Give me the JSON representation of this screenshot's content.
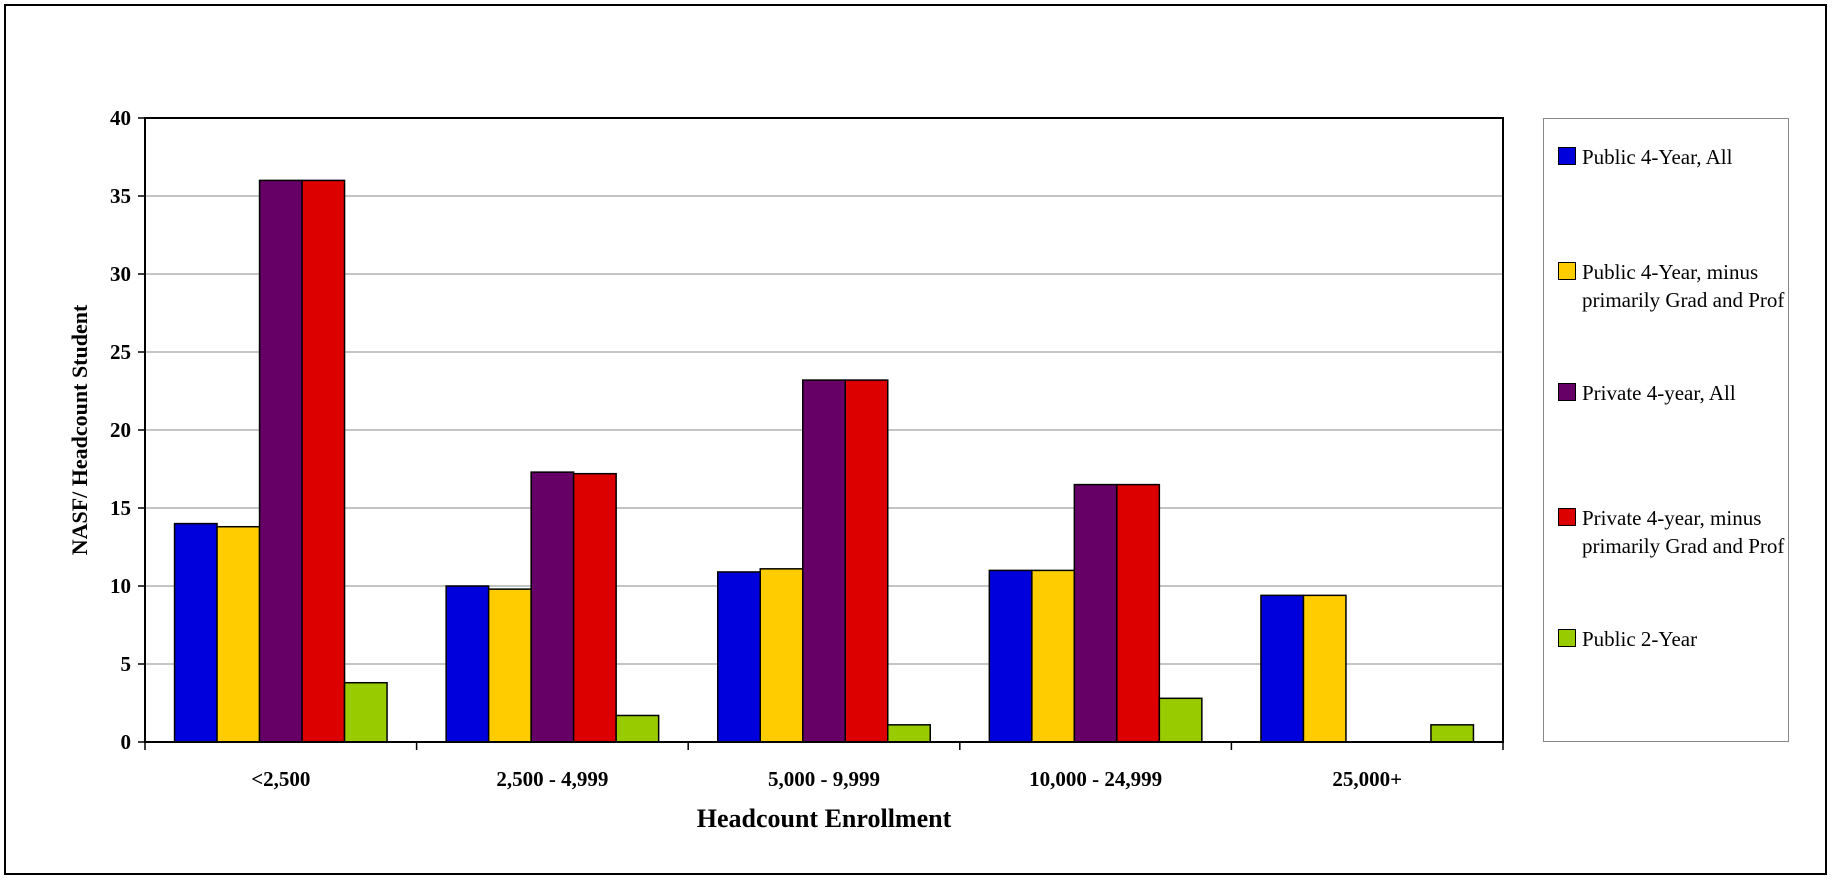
{
  "chart_data": {
    "type": "bar",
    "categories": [
      "<2,500",
      "2,500 - 4,999",
      "5,000 - 9,999",
      "10,000 - 24,999",
      "25,000+"
    ],
    "series": [
      {
        "name": "Public 4-Year, All",
        "color": "#0000dd",
        "values": [
          14.0,
          10.0,
          10.9,
          11.0,
          9.4
        ]
      },
      {
        "name": "Public 4-Year, minus primarily Grad and Prof",
        "color": "#ffcc00",
        "values": [
          13.8,
          9.8,
          11.1,
          11.0,
          9.4
        ]
      },
      {
        "name": "Private 4-year, All",
        "color": "#660066",
        "values": [
          36.0,
          17.3,
          23.2,
          16.5,
          0
        ]
      },
      {
        "name": "Private 4-year, minus primarily Grad and Prof",
        "color": "#dd0000",
        "values": [
          36.0,
          17.2,
          23.2,
          16.5,
          0
        ]
      },
      {
        "name": "Public 2-Year",
        "color": "#99cc00",
        "values": [
          3.8,
          1.7,
          1.1,
          2.8,
          1.1
        ]
      }
    ],
    "xlabel": "Headcount Enrollment",
    "ylabel": "NASF/ Headcount Student",
    "ylim": [
      0,
      40
    ],
    "yticks": [
      "0",
      "5",
      "10",
      "15",
      "20",
      "25",
      "30",
      "35",
      "40"
    ],
    "grid": true,
    "legend": "right"
  }
}
